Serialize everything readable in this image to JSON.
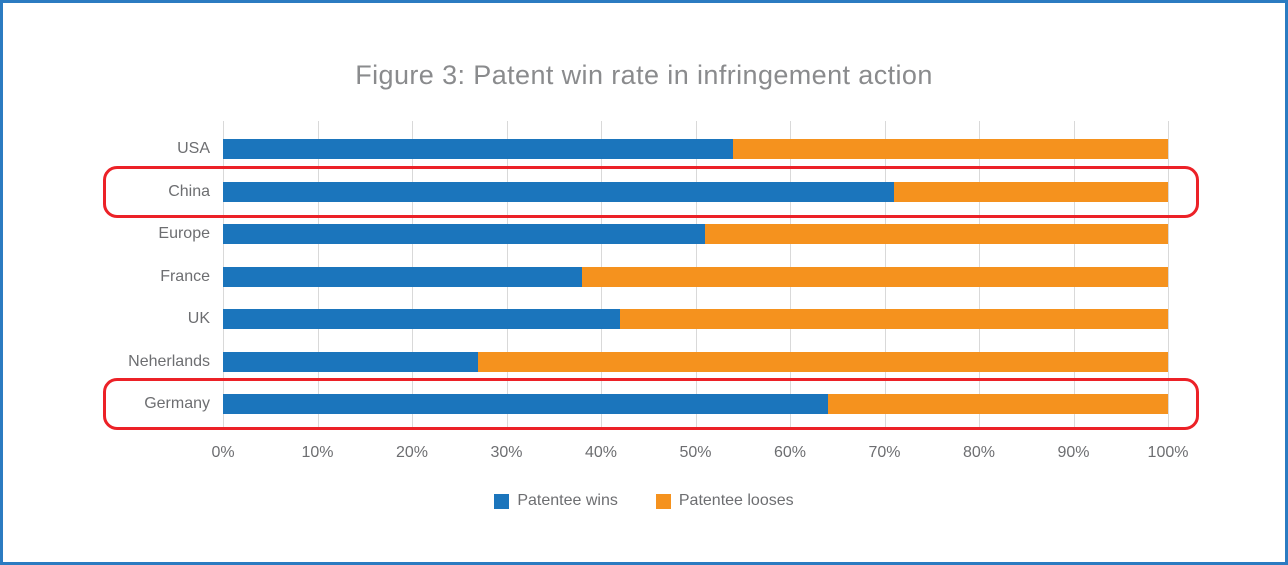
{
  "frame": {
    "border_color": "#2B7BC1",
    "background": "#FFFFFF"
  },
  "chart_data": {
    "type": "bar",
    "orientation": "horizontal",
    "stacked": true,
    "title": "Figure 3: Patent win rate in infringement action",
    "categories": [
      "USA",
      "China",
      "Europe",
      "France",
      "UK",
      "Neherlands",
      "Germany"
    ],
    "series": [
      {
        "name": "Patentee wins",
        "color": "#1B75BC",
        "values": [
          54,
          71,
          51,
          38,
          42,
          27,
          64
        ]
      },
      {
        "name": "Patentee looses",
        "color": "#F5921E",
        "values": [
          46,
          29,
          49,
          62,
          58,
          73,
          36
        ]
      }
    ],
    "x_ticks": [
      "0%",
      "10%",
      "20%",
      "30%",
      "40%",
      "50%",
      "60%",
      "70%",
      "80%",
      "90%",
      "100%"
    ],
    "xlim": [
      0,
      100
    ],
    "unit": "%",
    "grid": "vertical",
    "gridline_color": "#D9D9D9",
    "legend_position": "bottom",
    "highlighted_categories": [
      "China",
      "Germany"
    ],
    "highlight_color": "#EC2127",
    "text_colors": {
      "title": "#8A8B8D",
      "category_labels": "#6D6E71",
      "tick_labels": "#6D6E71",
      "legend_labels": "#6D6E71"
    }
  }
}
